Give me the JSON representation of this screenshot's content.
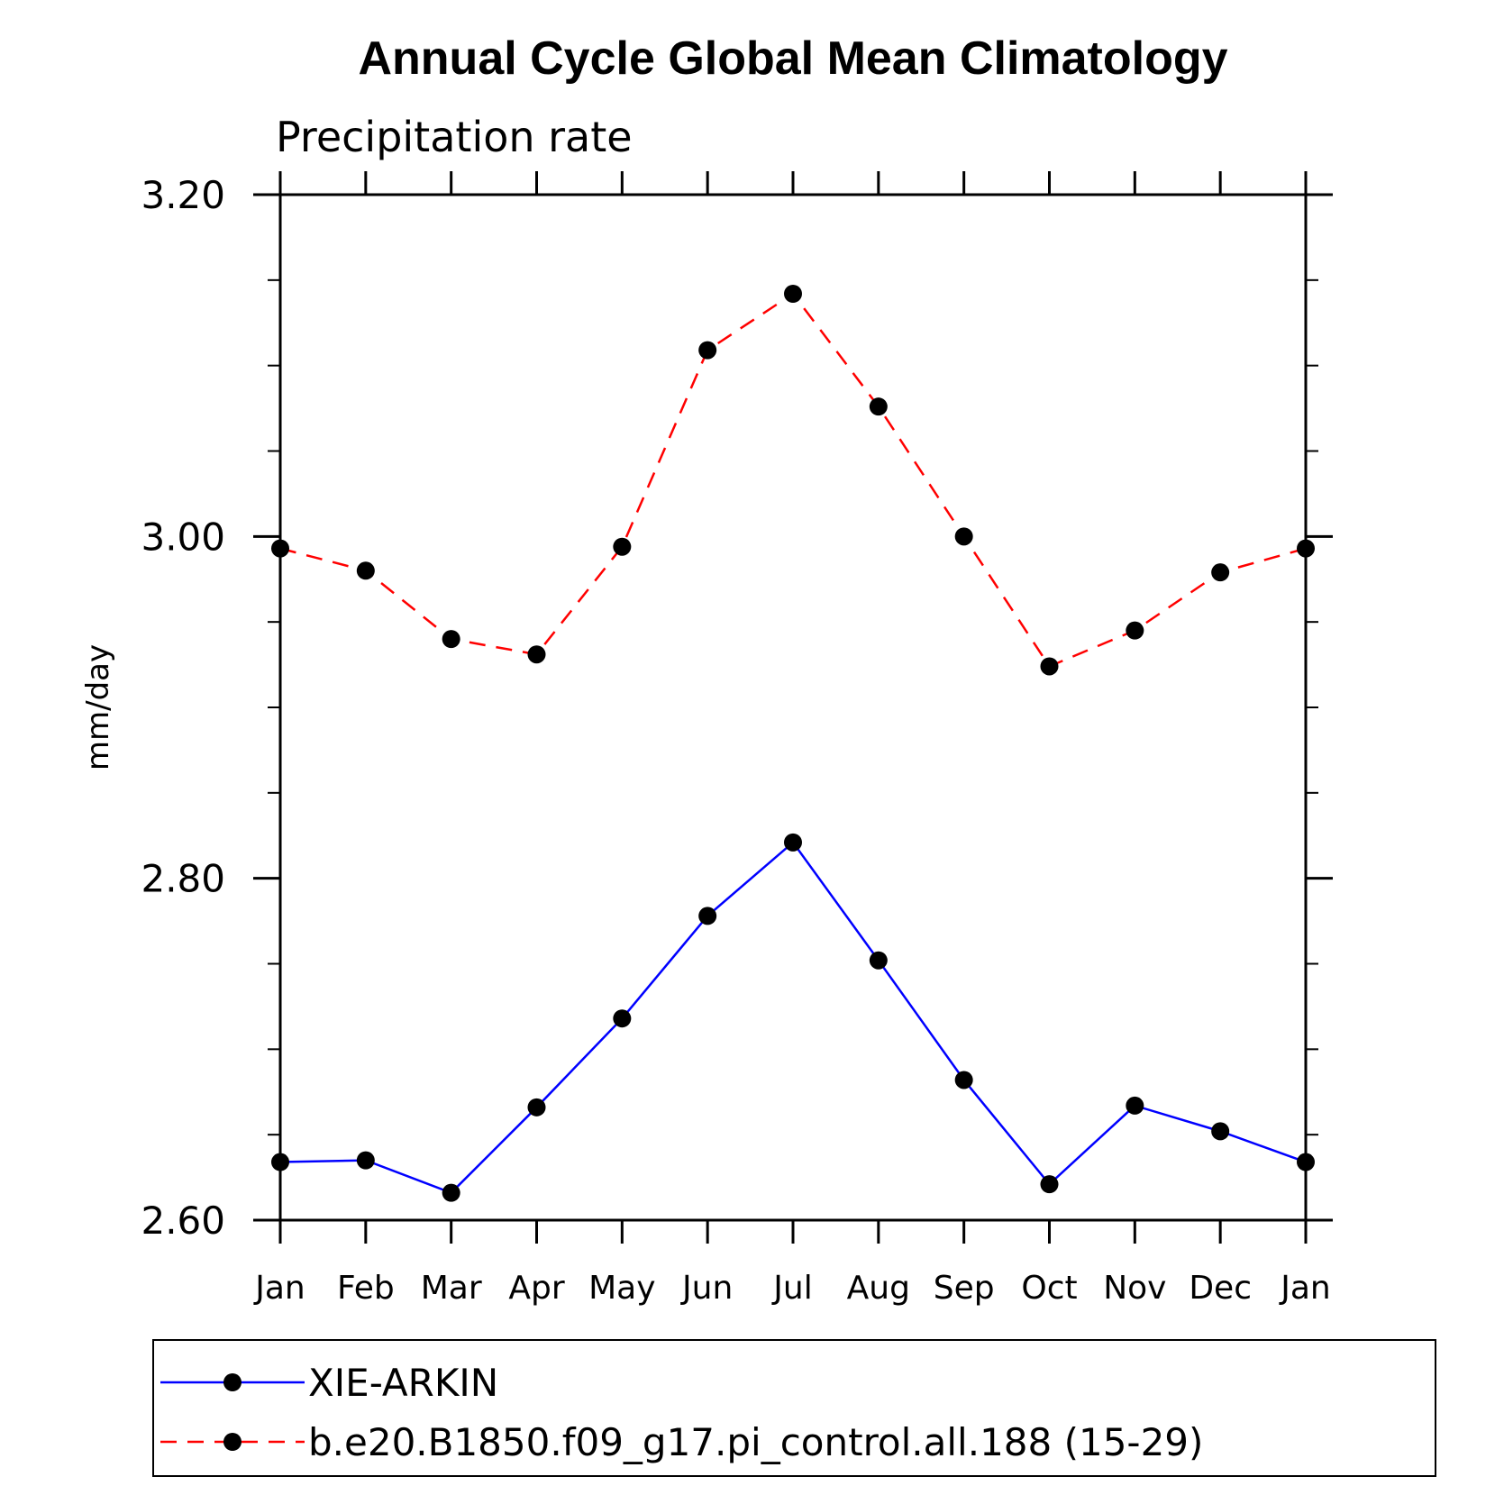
{
  "chart_data": {
    "type": "line",
    "title": "Annual Cycle Global Mean Climatology",
    "subtitle": "Precipitation rate",
    "xlabel": "",
    "ylabel": "mm/day",
    "categories": [
      "Jan",
      "Feb",
      "Mar",
      "Apr",
      "May",
      "Jun",
      "Jul",
      "Aug",
      "Sep",
      "Oct",
      "Nov",
      "Dec",
      "Jan"
    ],
    "ylim": [
      2.6,
      3.2
    ],
    "yticks": [
      "2.60",
      "2.80",
      "3.00",
      "3.20"
    ],
    "ytick_values": [
      2.6,
      2.8,
      3.0,
      3.2
    ],
    "grid": false,
    "legend_position": "bottom",
    "series": [
      {
        "name": "XIE-ARKIN",
        "color": "#0000ff",
        "style": "solid",
        "values": [
          2.634,
          2.635,
          2.616,
          2.666,
          2.718,
          2.778,
          2.821,
          2.752,
          2.682,
          2.621,
          2.667,
          2.652,
          2.634
        ]
      },
      {
        "name": "b.e20.B1850.f09_g17.pi_control.all.188 (15-29)",
        "color": "#ff0000",
        "style": "dashed",
        "values": [
          2.993,
          2.98,
          2.94,
          2.931,
          2.994,
          3.109,
          3.142,
          3.076,
          3.0,
          2.924,
          2.945,
          2.979,
          2.993
        ]
      }
    ]
  }
}
